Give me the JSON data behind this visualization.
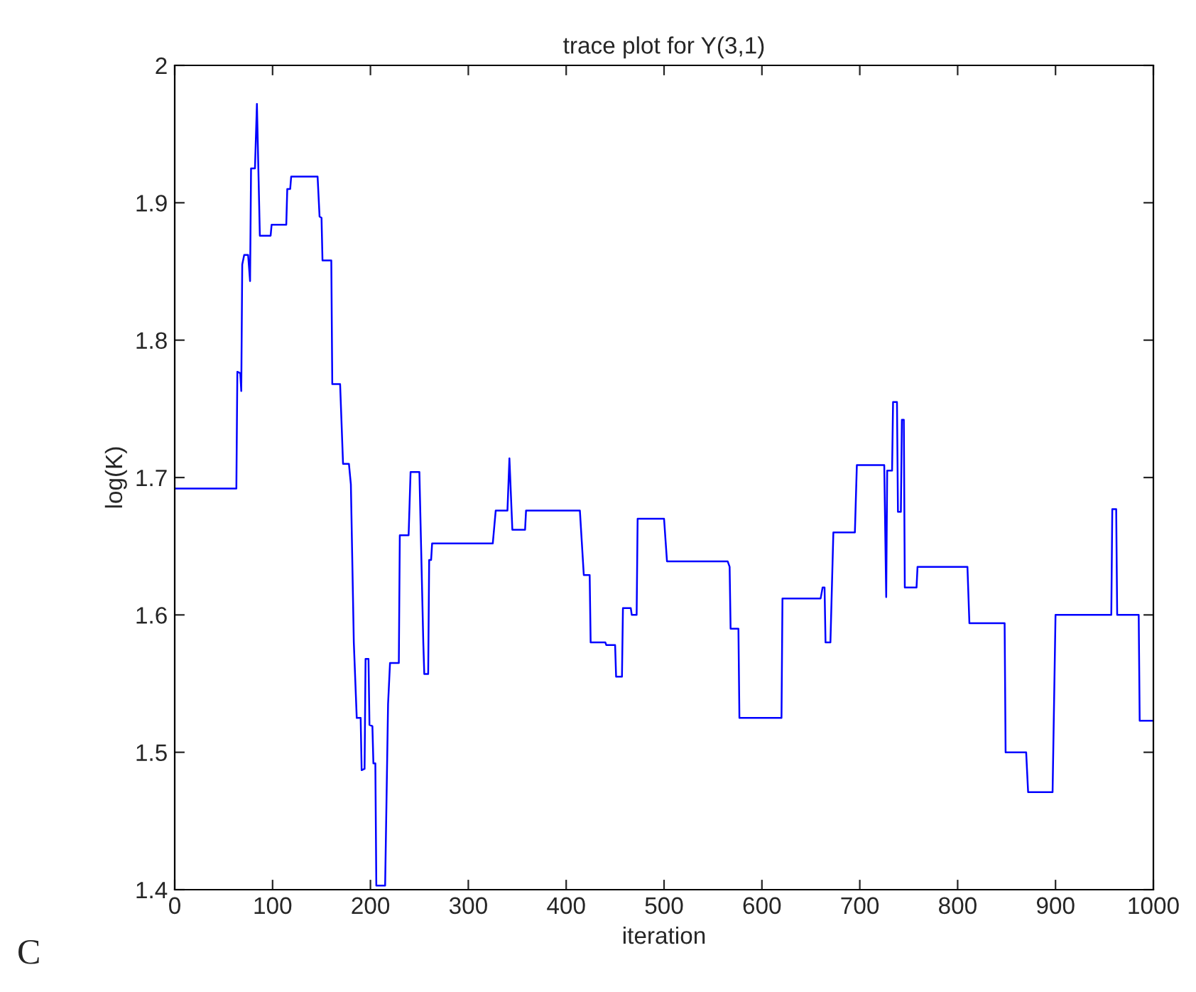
{
  "chart_data": {
    "type": "line",
    "title": "trace plot for Y(3,1)",
    "xlabel": "iteration",
    "ylabel": "log(K)",
    "annotations": [
      "C"
    ],
    "xlim": [
      0,
      1000
    ],
    "ylim": [
      1.4,
      2
    ],
    "xticks": [
      0,
      100,
      200,
      300,
      400,
      500,
      600,
      700,
      800,
      900,
      1000
    ],
    "yticks": [
      1.4,
      1.5,
      1.6,
      1.7,
      1.8,
      1.9,
      2
    ],
    "grid": false,
    "marker": "none",
    "line_style": "solid",
    "series": [
      {
        "color": "#0000ff",
        "x": [
          0,
          63,
          64,
          67,
          68,
          69,
          71,
          75,
          77,
          78,
          82,
          84,
          87,
          98,
          99,
          114,
          115,
          118,
          119,
          146,
          148,
          150,
          151,
          160,
          161,
          169,
          172,
          178,
          180,
          183,
          186,
          190,
          191,
          194,
          195,
          198,
          199,
          202,
          203,
          205,
          206,
          215,
          218,
          220,
          229,
          230,
          239,
          241,
          250,
          254,
          255,
          259,
          260,
          262,
          263,
          325,
          328,
          340,
          342,
          345,
          358,
          359,
          414,
          418,
          424,
          425,
          440,
          441,
          450,
          451,
          457,
          458,
          466,
          467,
          472,
          473,
          500,
          503,
          565,
          567,
          568,
          576,
          577,
          620,
          621,
          660,
          662,
          664,
          665,
          670,
          673,
          695,
          697,
          725,
          727,
          728,
          733,
          734,
          738,
          739,
          742,
          743,
          745,
          746,
          758,
          759,
          810,
          812,
          848,
          849,
          870,
          872,
          897,
          900,
          957,
          958,
          962,
          963,
          985,
          986,
          1000
        ],
        "values": [
          1.692,
          1.692,
          1.777,
          1.776,
          1.763,
          1.855,
          1.862,
          1.862,
          1.843,
          1.925,
          1.925,
          1.972,
          1.876,
          1.876,
          1.884,
          1.884,
          1.91,
          1.91,
          1.919,
          1.919,
          1.89,
          1.889,
          1.858,
          1.858,
          1.768,
          1.768,
          1.71,
          1.71,
          1.695,
          1.58,
          1.525,
          1.525,
          1.487,
          1.488,
          1.568,
          1.568,
          1.52,
          1.519,
          1.492,
          1.492,
          1.403,
          1.403,
          1.535,
          1.565,
          1.565,
          1.658,
          1.658,
          1.704,
          1.704,
          1.58,
          1.557,
          1.557,
          1.64,
          1.64,
          1.652,
          1.652,
          1.676,
          1.676,
          1.714,
          1.662,
          1.662,
          1.676,
          1.676,
          1.629,
          1.629,
          1.58,
          1.58,
          1.578,
          1.578,
          1.555,
          1.555,
          1.605,
          1.605,
          1.6,
          1.6,
          1.67,
          1.67,
          1.639,
          1.639,
          1.635,
          1.59,
          1.59,
          1.525,
          1.525,
          1.612,
          1.612,
          1.62,
          1.62,
          1.58,
          1.58,
          1.66,
          1.66,
          1.709,
          1.709,
          1.613,
          1.705,
          1.705,
          1.755,
          1.755,
          1.675,
          1.675,
          1.742,
          1.742,
          1.62,
          1.62,
          1.635,
          1.635,
          1.594,
          1.594,
          1.5,
          1.5,
          1.471,
          1.471,
          1.6,
          1.6,
          1.677,
          1.677,
          1.6,
          1.6,
          1.523,
          1.523
        ]
      }
    ]
  }
}
